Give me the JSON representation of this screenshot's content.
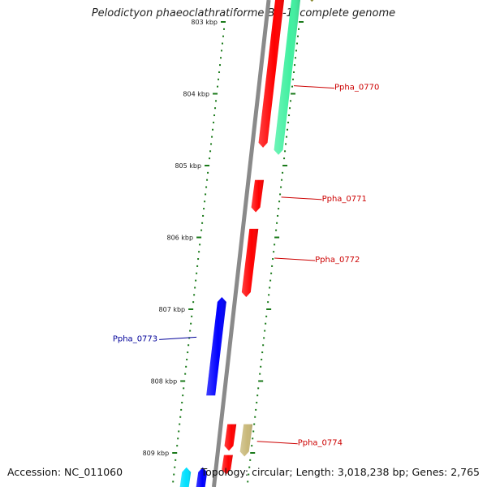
{
  "title": "Pelodictyon phaeoclathratiforme BU-1, complete genome",
  "accession": "Accession: NC_011060",
  "summary": "Topology: circular; Length: 3,018,238 bp; Genes: 2,765",
  "backbone_color": "#8a8a8a",
  "tick_color": "#1a7a1a",
  "scale_ticks": [
    {
      "label": "803 kbp",
      "kbp": 803
    },
    {
      "label": "804 kbp",
      "kbp": 804
    },
    {
      "label": "805 kbp",
      "kbp": 805
    },
    {
      "label": "806 kbp",
      "kbp": 806
    },
    {
      "label": "807 kbp",
      "kbp": 807
    },
    {
      "label": "808 kbp",
      "kbp": 808
    },
    {
      "label": "809 kbp",
      "kbp": 809
    }
  ],
  "genes": [
    {
      "start": 802.6,
      "end": 804.75,
      "strand": "plus",
      "track": 0,
      "color": "#ff0000"
    },
    {
      "start": 802.6,
      "end": 804.85,
      "strand": "plus",
      "track": 1,
      "color": "#40f0a0"
    },
    {
      "start": 802.6,
      "end": 802.72,
      "strand": "plus",
      "track": 2,
      "color": "#808020"
    },
    {
      "start": 805.2,
      "end": 805.65,
      "strand": "plus",
      "track": 0,
      "color": "#ff0000"
    },
    {
      "start": 805.88,
      "end": 806.83,
      "strand": "plus",
      "track": 0,
      "color": "#ff0000"
    },
    {
      "start": 806.83,
      "end": 808.2,
      "strand": "minus",
      "track": 0,
      "color": "#0000ff"
    },
    {
      "start": 808.6,
      "end": 808.97,
      "strand": "plus",
      "track": 0,
      "color": "#ff0000"
    },
    {
      "start": 808.6,
      "end": 809.05,
      "strand": "plus",
      "track": 1,
      "color": "#c8b878"
    },
    {
      "start": 809.03,
      "end": 809.3,
      "strand": "plus",
      "track": 0,
      "color": "#ff0000"
    },
    {
      "start": 809.2,
      "end": 809.55,
      "strand": "minus",
      "track": 0,
      "color": "#0000ff"
    },
    {
      "start": 809.2,
      "end": 809.55,
      "strand": "minus",
      "track": 1,
      "color": "#00e0ff"
    }
  ],
  "gene_labels": [
    {
      "text": "Ppha_0770",
      "kbp": 803.9,
      "track": 0,
      "strand": "plus",
      "color": "#cc0000"
    },
    {
      "text": "Ppha_0771",
      "kbp": 805.45,
      "track": 0,
      "strand": "plus",
      "color": "#cc0000"
    },
    {
      "text": "Ppha_0772",
      "kbp": 806.3,
      "track": 0,
      "strand": "plus",
      "color": "#cc0000"
    },
    {
      "text": "Ppha_0773",
      "kbp": 807.4,
      "track": 0,
      "strand": "minus",
      "color": "#000099"
    },
    {
      "text": "Ppha_0774",
      "kbp": 808.85,
      "track": 1,
      "strand": "plus",
      "color": "#cc0000"
    }
  ]
}
